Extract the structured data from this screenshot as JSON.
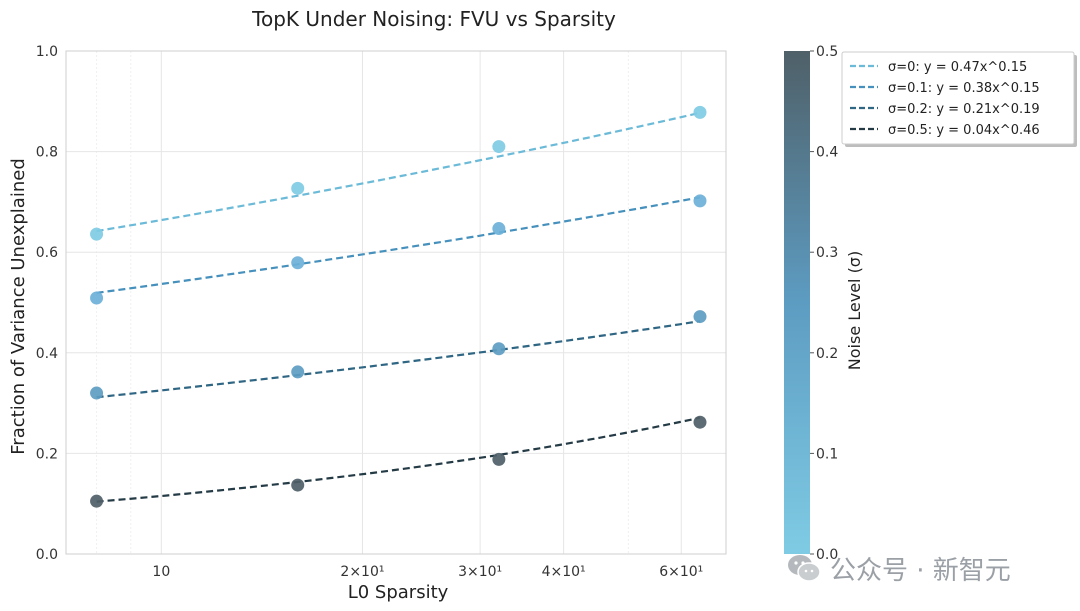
{
  "chart_data": {
    "type": "scatter",
    "title": "TopK Under Noising: FVU vs Sparsity",
    "xlabel": "L0 Sparsity",
    "ylabel": "Fraction of Variance Unexplained",
    "xscale": "log",
    "xlim": [
      7.2,
      70
    ],
    "ylim": [
      0.0,
      1.0
    ],
    "x_ticks": [
      {
        "value": 10,
        "label": "10"
      },
      {
        "value": 20,
        "label": "2×10¹"
      },
      {
        "value": 30,
        "label": "3×10¹"
      },
      {
        "value": 40,
        "label": "4×10¹"
      },
      {
        "value": 60,
        "label": "6×10¹"
      }
    ],
    "y_ticks": [
      {
        "value": 0.0,
        "label": "0.0"
      },
      {
        "value": 0.2,
        "label": "0.2"
      },
      {
        "value": 0.4,
        "label": "0.4"
      },
      {
        "value": 0.6,
        "label": "0.6"
      },
      {
        "value": 0.8,
        "label": "0.8"
      },
      {
        "value": 1.0,
        "label": "1.0"
      }
    ],
    "x": [
      8,
      16,
      32,
      64
    ],
    "series": [
      {
        "name": "σ=0",
        "sigma": 0.0,
        "values": [
          0.636,
          0.727,
          0.81,
          0.878
        ],
        "color": "#7fcbe4",
        "fit": {
          "a": 0.47,
          "b": 0.15,
          "label": "σ=0: y = 0.47x^0.15",
          "color": "#6bbad8"
        }
      },
      {
        "name": "σ=0.1",
        "sigma": 0.1,
        "values": [
          0.509,
          0.579,
          0.647,
          0.702
        ],
        "color": "#6cb1d8",
        "fit": {
          "a": 0.38,
          "b": 0.15,
          "label": "σ=0.1: y = 0.38x^0.15",
          "color": "#4590bc"
        }
      },
      {
        "name": "σ=0.2",
        "sigma": 0.2,
        "values": [
          0.32,
          0.362,
          0.408,
          0.472
        ],
        "color": "#5d9cc2",
        "fit": {
          "a": 0.21,
          "b": 0.19,
          "label": "σ=0.2: y = 0.21x^0.19",
          "color": "#2f6683"
        }
      },
      {
        "name": "σ=0.5",
        "sigma": 0.5,
        "values": [
          0.105,
          0.137,
          0.188,
          0.262
        ],
        "color": "#4f6068",
        "fit": {
          "a": 0.04,
          "b": 0.46,
          "label": "σ=0.5: y = 0.04x^0.46",
          "color": "#243b46"
        }
      }
    ],
    "grid": true,
    "legend_position": "top-right, outside axes",
    "colorbar": {
      "label": "Noise Level (σ)",
      "range": [
        0.0,
        0.5
      ],
      "ticks": [
        "0.0",
        "0.1",
        "0.2",
        "0.3",
        "0.4",
        "0.5"
      ],
      "colors": [
        "#7fcbe4",
        "#5d9cc2",
        "#4f6068"
      ]
    }
  },
  "watermark": {
    "text": "公众号 · 新智元",
    "icon": "wechat-icon"
  }
}
